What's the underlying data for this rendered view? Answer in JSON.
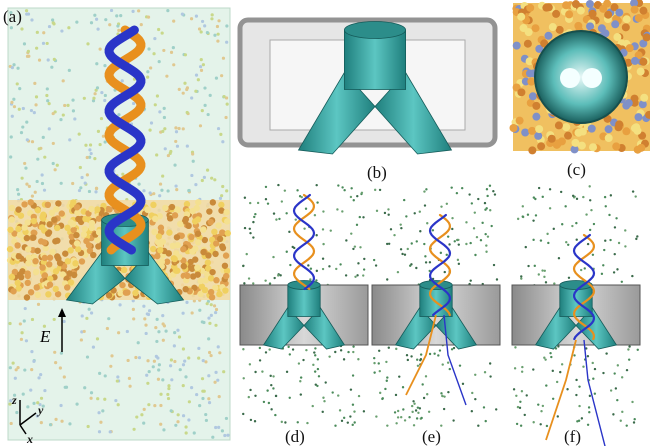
{
  "panels": {
    "a": "(a)",
    "b": "(b)",
    "c": "(c)",
    "d": "(d)",
    "e": "(e)",
    "f": "(f)"
  },
  "field_label": "E",
  "axes": {
    "z": "z",
    "y": "y",
    "x": "x"
  }
}
